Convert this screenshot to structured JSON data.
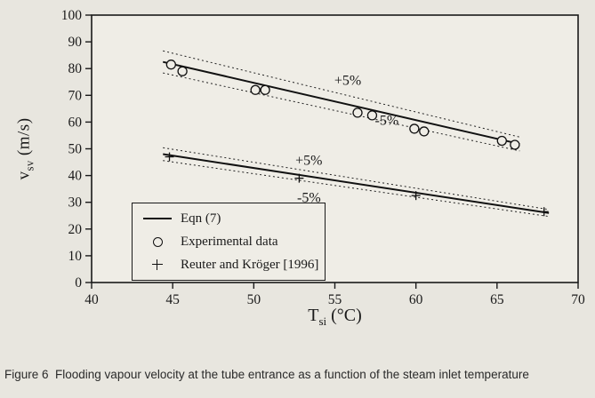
{
  "caption": "Figure 6  Flooding vapour velocity at the tube entrance as a function of the steam inlet temperature",
  "chart_data": {
    "type": "scatter",
    "title": "",
    "xlabel": "T_si (°C)",
    "ylabel": "v_sv (m/s)",
    "xlabel_parts": {
      "base": "T",
      "sub": "si",
      "rest": " (°C)"
    },
    "ylabel_parts": {
      "base": "v",
      "sub": "sv",
      "rest": " (m/s)"
    },
    "xlim": [
      40,
      70
    ],
    "ylim": [
      0,
      100
    ],
    "x_ticks": [
      40,
      45,
      50,
      55,
      60,
      65,
      70
    ],
    "y_ticks": [
      0,
      10,
      20,
      30,
      40,
      50,
      60,
      70,
      80,
      90,
      100
    ],
    "grid": false,
    "tolerance_band_pct": 5,
    "lines": [
      {
        "name": "Eqn (7)",
        "x": [
          44.4,
          66.4
        ],
        "y": [
          82.5,
          51.8
        ]
      },
      {
        "name": "Eqn (7)",
        "x": [
          44.4,
          68.2
        ],
        "y": [
          48,
          26
        ]
      }
    ],
    "scatter": [
      {
        "name": "Experimental data",
        "marker": "circle",
        "points": [
          [
            44.9,
            81.5
          ],
          [
            45.6,
            79
          ],
          [
            50.1,
            72
          ],
          [
            50.7,
            72
          ],
          [
            56.4,
            63.5
          ],
          [
            57.3,
            62.5
          ],
          [
            59.9,
            57.5
          ],
          [
            60.5,
            56.5
          ],
          [
            65.3,
            53
          ],
          [
            66.1,
            51.5
          ]
        ]
      },
      {
        "name": "Reuter and Kröger [1996]",
        "marker": "plus",
        "points": [
          [
            44.8,
            47
          ],
          [
            52.8,
            39
          ],
          [
            60.0,
            32.5
          ],
          [
            67.9,
            26.5
          ]
        ]
      }
    ],
    "annotations": [
      {
        "text": "+5%",
        "x": 55.8,
        "y": 74
      },
      {
        "text": "-5%",
        "x": 58.2,
        "y": 59
      },
      {
        "text": "+5%",
        "x": 53.4,
        "y": 44
      },
      {
        "text": "-5%",
        "x": 53.4,
        "y": 30
      }
    ],
    "legend": {
      "position": "lower-left",
      "entries": [
        {
          "marker": "line",
          "label": "Eqn (7)"
        },
        {
          "marker": "circle",
          "label": "Experimental data"
        },
        {
          "marker": "plus",
          "label": "Reuter and Kröger [1996]"
        }
      ]
    }
  }
}
